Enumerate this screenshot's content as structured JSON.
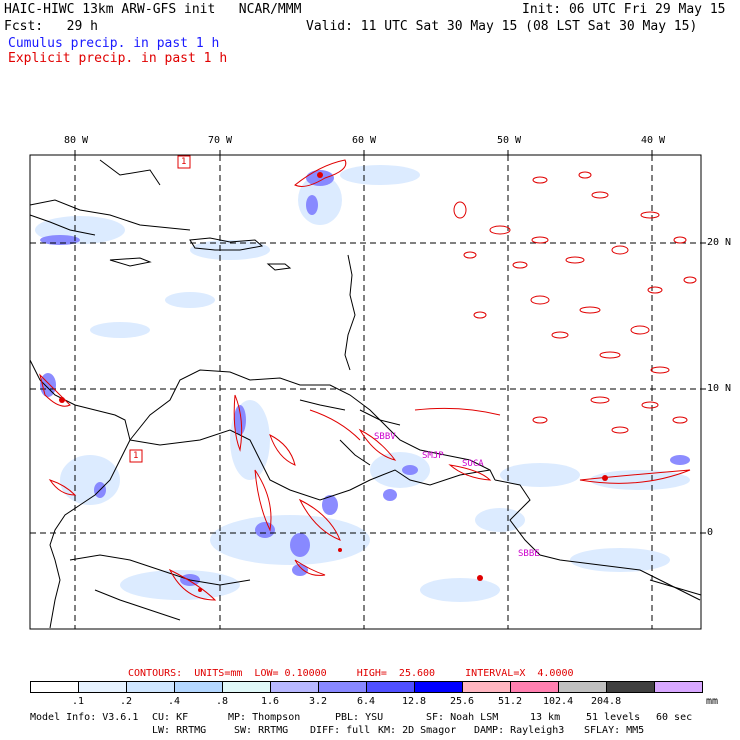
{
  "header": {
    "line1_left": "HAIC-HIWC 13km ARW-GFS init   NCAR/MMM",
    "line1_right": "Init: 06 UTC Fri 29 May 15",
    "line2_left": "Fcst:   29 h",
    "line2_right": "Valid: 11 UTC Sat 30 May 15 (08 LST Sat 30 May 15)",
    "cumulus_label": "Cumulus precip. in past 1 h",
    "explicit_label": "Explicit precip. in past 1 h"
  },
  "axes": {
    "lon_labels": [
      "80 W",
      "70 W",
      "60 W",
      "50 W",
      "40 W"
    ],
    "lat_labels": [
      "20 N",
      "10 N",
      "0"
    ]
  },
  "map_labels": {
    "box1": "1",
    "box2": "1",
    "stations": [
      "SBBV",
      "SMJP",
      "SOCA",
      "SBBE"
    ]
  },
  "contours": {
    "text": "CONTOURS:  UNITS=mm  LOW= 0.10000     HIGH=  25.600     INTERVAL=X  4.0000"
  },
  "colorbar": {
    "ticks": [
      ".1",
      ".2",
      ".4",
      ".8",
      "1.6",
      "3.2",
      "6.4",
      "12.8",
      "25.6",
      "51.2",
      "102.4",
      "204.8"
    ],
    "units": "mm",
    "colors": [
      "#ffffff",
      "#e6f2ff",
      "#cfe6ff",
      "#b4d7ff",
      "#e0f8f8",
      "#b8b8ff",
      "#8888ff",
      "#5050ff",
      "#0000ff",
      "#ffb6c1",
      "#ff80b0",
      "#c0c0c0",
      "#404040",
      "#d8a8ff"
    ]
  },
  "footer": {
    "line1": [
      "Model Info: V3.6.1",
      "CU: KF",
      "MP: Thompson",
      "PBL: YSU",
      "SF: Noah LSM",
      "13 km",
      "51 levels",
      "60 sec"
    ],
    "line2": [
      "LW: RRTMG",
      "SW: RRTMG",
      "DIFF: full",
      "KM: 2D Smagor",
      "DAMP: Rayleigh3",
      "SFLAY: MM5"
    ]
  }
}
